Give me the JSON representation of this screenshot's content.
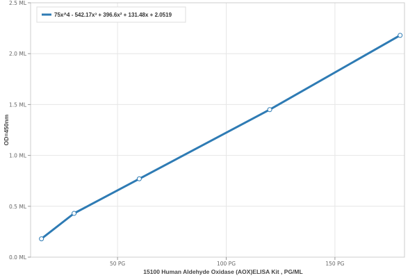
{
  "chart_data": {
    "type": "line",
    "xlabel": "15100 Human Aldehyde Oxidase (AOX)ELISA Kit  , PG/ML",
    "ylabel": "OD=450nm",
    "xlim": [
      10,
      182
    ],
    "ylim": [
      0,
      2.5
    ],
    "x_ticks": [
      {
        "value": 50,
        "label": "50 PG"
      },
      {
        "value": 100,
        "label": "100 PG"
      },
      {
        "value": 150,
        "label": "150 PG"
      }
    ],
    "y_ticks": [
      {
        "value": 0.0,
        "label": "0.0 ML"
      },
      {
        "value": 0.5,
        "label": "0.5 ML"
      },
      {
        "value": 1.0,
        "label": "1.0 ML"
      },
      {
        "value": 1.5,
        "label": "1.5 ML"
      },
      {
        "value": 2.0,
        "label": "2.0 ML"
      },
      {
        "value": 2.5,
        "label": "2.5 ML"
      }
    ],
    "grid": true,
    "legend_position": "top-left",
    "series": [
      {
        "name": "75x^4 - 542.17x³ + 396.6x² + 131.48x + 2.0519",
        "color": "#2e7bb4",
        "x": [
          15,
          30,
          60,
          120,
          180
        ],
        "y": [
          0.18,
          0.43,
          0.77,
          1.45,
          2.18
        ]
      }
    ]
  }
}
